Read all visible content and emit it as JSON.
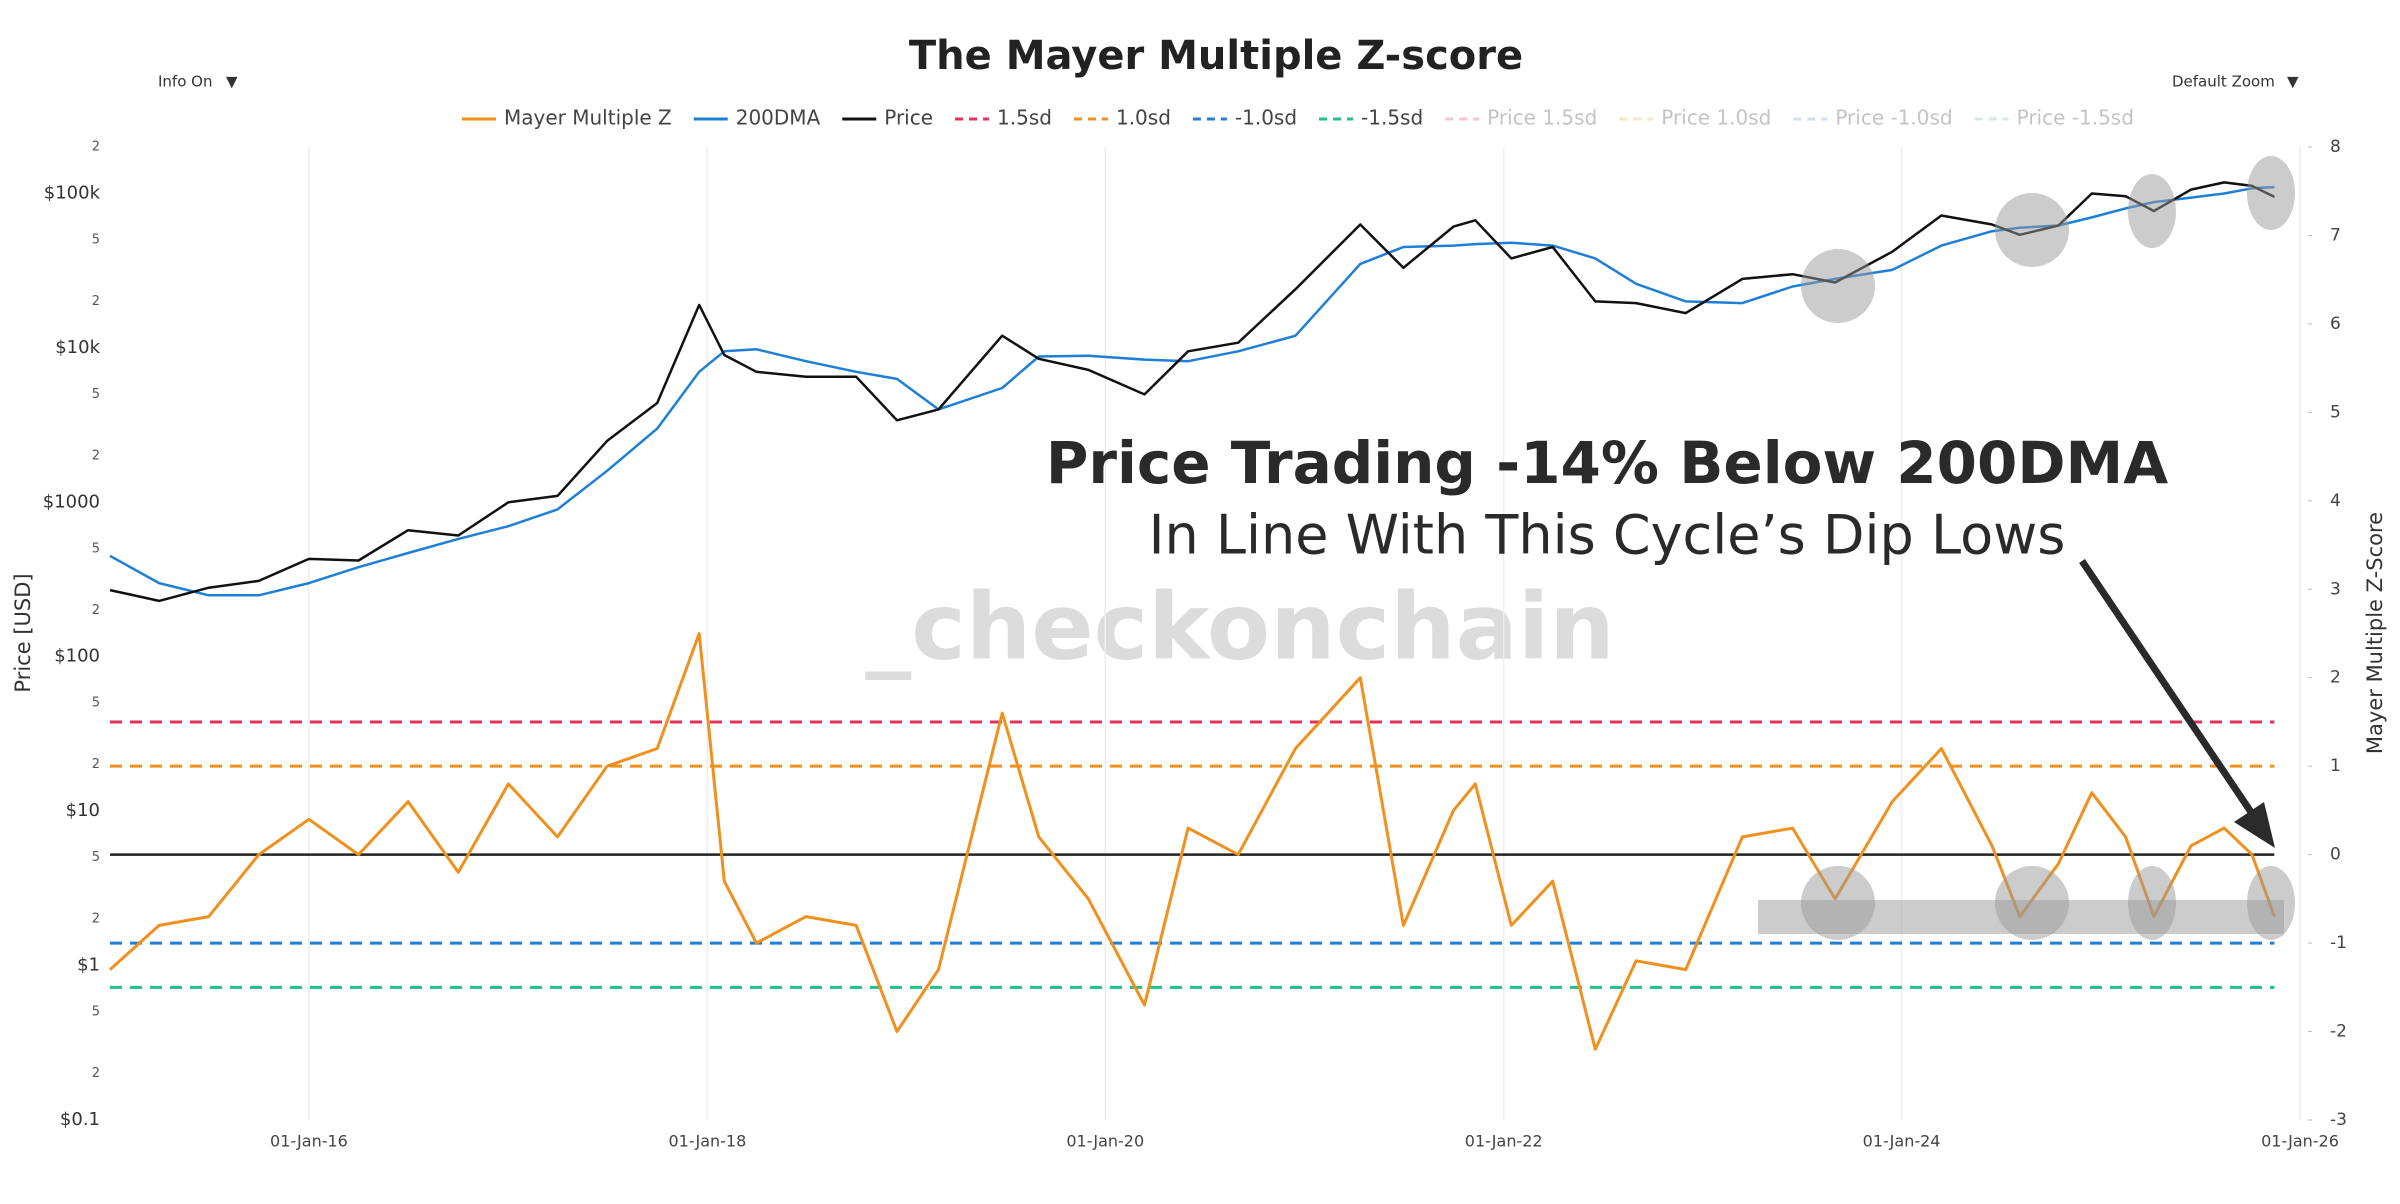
{
  "controls": {
    "info": "Info On",
    "zoom": "Default Zoom"
  },
  "chart_data": {
    "type": "line",
    "title": "The Mayer Multiple Z-score",
    "ylabel": "Price [USD]",
    "y2label": "Mayer Multiple Z-Score",
    "annotations": {
      "headline": "Price Trading -14% Below 200DMA",
      "subline": "In Line With This Cycle’s Dip Lows",
      "watermark": "_checkonchain"
    },
    "log_y": true,
    "grid": "x",
    "x": [
      "2015-01-01",
      "2015-04-01",
      "2015-07-01",
      "2015-10-01",
      "2016-01-01",
      "2016-04-01",
      "2016-07-01",
      "2016-10-01",
      "2017-01-01",
      "2017-04-01",
      "2017-07-01",
      "2017-10-01",
      "2017-12-17",
      "2018-02-01",
      "2018-04-01",
      "2018-07-01",
      "2018-10-01",
      "2018-12-15",
      "2019-03-01",
      "2019-06-26",
      "2019-09-01",
      "2019-12-01",
      "2020-03-13",
      "2020-06-01",
      "2020-09-01",
      "2020-12-15",
      "2021-04-13",
      "2021-07-01",
      "2021-10-01",
      "2021-11-10",
      "2022-01-15",
      "2022-04-01",
      "2022-06-18",
      "2022-09-01",
      "2022-12-01",
      "2023-03-15",
      "2023-06-15",
      "2023-09-01",
      "2023-12-15",
      "2024-03-14",
      "2024-06-15",
      "2024-08-05",
      "2024-10-15",
      "2024-12-15",
      "2025-02-15",
      "2025-04-08",
      "2025-06-15",
      "2025-08-15",
      "2025-10-05",
      "2025-11-15"
    ],
    "series": [
      {
        "name": "Mayer Multiple Z",
        "color": "#f0901e",
        "axis": "y2",
        "values": [
          -1.3,
          -0.8,
          -0.7,
          0.0,
          0.4,
          0.0,
          0.6,
          -0.2,
          0.8,
          0.2,
          1.0,
          1.2,
          2.5,
          -0.3,
          -1.0,
          -0.7,
          -0.8,
          -2.0,
          -1.3,
          1.6,
          0.2,
          -0.5,
          -1.7,
          0.3,
          0.0,
          1.2,
          2.0,
          -0.8,
          0.5,
          0.8,
          -0.8,
          -0.3,
          -2.2,
          -1.2,
          -1.3,
          0.2,
          0.3,
          -0.5,
          0.6,
          1.2,
          0.1,
          -0.7,
          -0.1,
          0.7,
          0.2,
          -0.7,
          0.1,
          0.3,
          0.0,
          -0.7
        ]
      },
      {
        "name": "200DMA",
        "color": "#1f7fd6",
        "axis": "y",
        "values": [
          450,
          300,
          250,
          250,
          300,
          380,
          470,
          580,
          700,
          900,
          1600,
          3000,
          7000,
          9500,
          9800,
          8200,
          7000,
          6300,
          4000,
          5500,
          8800,
          8900,
          8400,
          8200,
          9500,
          12000,
          35000,
          45000,
          46000,
          47000,
          48000,
          46000,
          38000,
          26000,
          20000,
          19500,
          25000,
          28000,
          32000,
          46000,
          57000,
          60000,
          62000,
          70000,
          80000,
          88000,
          94000,
          100000,
          108000,
          110000
        ]
      },
      {
        "name": "Price",
        "color": "#111111",
        "axis": "y",
        "values": [
          270,
          230,
          280,
          310,
          430,
          420,
          660,
          610,
          1000,
          1100,
          2500,
          4400,
          19000,
          9000,
          7000,
          6500,
          6500,
          3400,
          4000,
          12000,
          8500,
          7200,
          5000,
          9500,
          10800,
          24000,
          63000,
          33000,
          61000,
          67000,
          38000,
          45000,
          20000,
          19500,
          16800,
          28000,
          30000,
          26500,
          42000,
          72000,
          63000,
          54000,
          62000,
          100000,
          96000,
          77000,
          106000,
          118000,
          112000,
          95000
        ]
      }
    ],
    "reference_lines": [
      {
        "name": "1.5sd",
        "color": "#e0325a",
        "value": 1.5
      },
      {
        "name": "1.0sd",
        "color": "#f0901e",
        "value": 1.0
      },
      {
        "name": "-1.0sd",
        "color": "#1f7fd6",
        "value": -1.0
      },
      {
        "name": "-1.5sd",
        "color": "#22c08a",
        "value": -1.5
      }
    ],
    "baseline": 0,
    "hidden_series": [
      {
        "name": "Price 1.5sd",
        "color": "#f5c6d2"
      },
      {
        "name": "Price 1.0sd",
        "color": "#f8e6c6"
      },
      {
        "name": "Price -1.0sd",
        "color": "#cfe2f4"
      },
      {
        "name": "Price -1.5sd",
        "color": "#cdeee2"
      }
    ],
    "xlim": [
      "2015-01-01",
      "2026-01-01"
    ],
    "xticks": [
      {
        "value": "2016-01-01",
        "label": "01-Jan-16"
      },
      {
        "value": "2018-01-01",
        "label": "01-Jan-18"
      },
      {
        "value": "2020-01-01",
        "label": "01-Jan-20"
      },
      {
        "value": "2022-01-01",
        "label": "01-Jan-22"
      },
      {
        "value": "2024-01-01",
        "label": "01-Jan-24"
      },
      {
        "value": "2026-01-01",
        "label": "01-Jan-26"
      }
    ],
    "ylim": [
      0.1,
      200000
    ],
    "yticks": [
      {
        "value": 0.1,
        "label": "$0.1"
      },
      {
        "value": 0.2,
        "label": "2"
      },
      {
        "value": 0.5,
        "label": "5"
      },
      {
        "value": 1,
        "label": "$1"
      },
      2,
      5,
      {
        "value": 10,
        "label": "$10"
      },
      {
        "value": 20,
        "label": "2"
      },
      {
        "value": 50,
        "label": "5"
      },
      {
        "value": 100,
        "label": "$100"
      },
      {
        "value": 200,
        "label": "2"
      },
      {
        "value": 500,
        "label": "5"
      },
      {
        "value": 1000,
        "label": "$1000"
      },
      {
        "value": 2000,
        "label": "2"
      },
      {
        "value": 5000,
        "label": "5"
      },
      {
        "value": 10000,
        "label": "$10k"
      },
      {
        "value": 20000,
        "label": "2"
      },
      {
        "value": 50000,
        "label": "5"
      },
      {
        "value": 100000,
        "label": "$100k"
      },
      {
        "value": 200000,
        "label": "2"
      }
    ],
    "y2lim": [
      -3,
      8
    ],
    "y2ticks": [
      -3,
      -2,
      -1,
      0,
      1,
      2,
      3,
      4,
      5,
      6,
      7,
      8
    ]
  }
}
